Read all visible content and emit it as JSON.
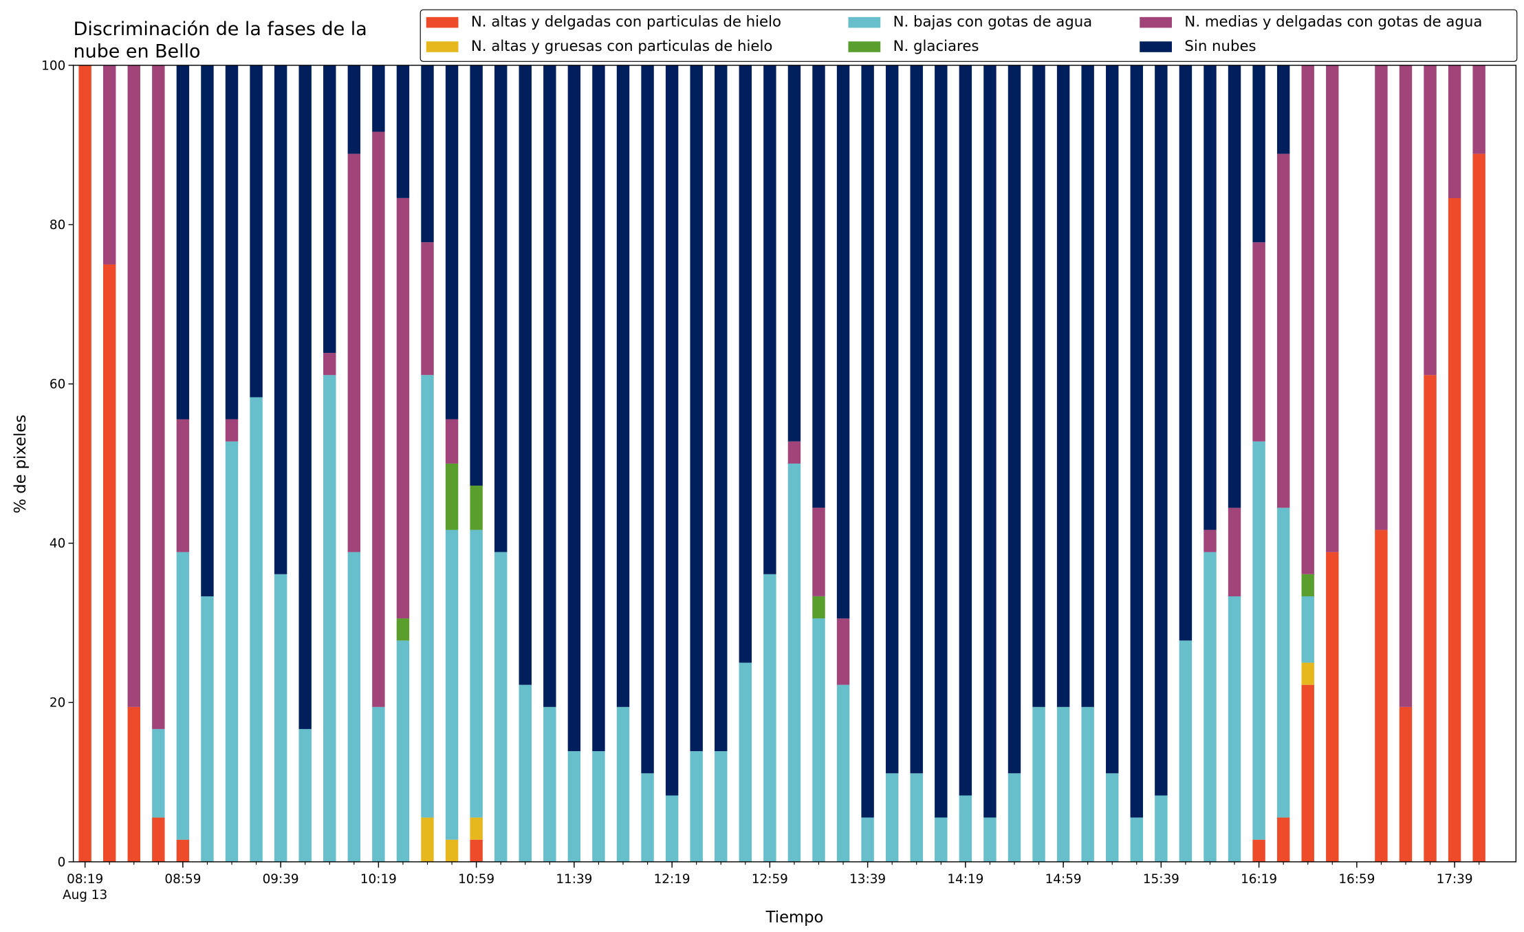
{
  "chart_data": {
    "type": "stacked_bar",
    "title": [
      "Discriminación de la fases de la",
      "nube en Bello"
    ],
    "xlabel": "Tiempo",
    "ylabel": "% de pixeles",
    "x": [
      "08:19",
      "08:29",
      "08:39",
      "08:49",
      "08:59",
      "09:09",
      "09:19",
      "09:29",
      "09:39",
      "09:49",
      "09:59",
      "10:09",
      "10:19",
      "10:29",
      "10:39",
      "10:49",
      "10:59",
      "11:09",
      "11:19",
      "11:29",
      "11:39",
      "11:49",
      "11:59",
      "12:09",
      "12:19",
      "12:29",
      "12:39",
      "12:49",
      "12:59",
      "13:09",
      "13:19",
      "13:29",
      "13:39",
      "13:49",
      "13:59",
      "14:09",
      "14:19",
      "14:29",
      "14:39",
      "14:49",
      "14:59",
      "15:09",
      "15:19",
      "15:29",
      "15:39",
      "15:49",
      "15:59",
      "16:09",
      "16:19",
      "16:29",
      "16:39",
      "16:49",
      "16:59",
      "17:09",
      "17:19",
      "17:29",
      "17:39",
      "17:49"
    ],
    "xticks": [
      "08:19",
      "08:59",
      "09:39",
      "10:19",
      "10:59",
      "11:39",
      "12:19",
      "12:59",
      "13:39",
      "14:19",
      "14:59",
      "15:39",
      "16:19",
      "16:59",
      "17:39"
    ],
    "x_date_label": "Aug 13",
    "ylim": [
      0,
      100
    ],
    "yticks": [
      0,
      20,
      40,
      60,
      80,
      100
    ],
    "legend": "top-right",
    "series": [
      {
        "name": "N. altas y delgadas con particulas de hielo",
        "color": "#ee4b2b",
        "values": [
          100,
          75,
          19.44,
          5.56,
          2.78,
          0,
          0,
          0,
          0,
          0,
          0,
          0,
          0,
          0,
          0,
          0,
          2.78,
          0,
          0,
          0,
          0,
          0,
          0,
          0,
          0,
          0,
          0,
          0,
          0,
          0,
          0,
          0,
          0,
          0,
          0,
          0,
          0,
          0,
          0,
          0,
          0,
          0,
          0,
          0,
          0,
          0,
          0,
          0,
          2.78,
          5.56,
          22.22,
          38.89,
          null,
          41.67,
          19.44,
          61.11,
          83.33,
          88.89
        ]
      },
      {
        "name": "N. altas y gruesas con particulas de hielo",
        "color": "#e6b81e",
        "values": [
          0,
          0,
          0,
          0,
          0,
          0,
          0,
          0,
          0,
          0,
          0,
          0,
          0,
          0,
          5.56,
          2.78,
          2.78,
          0,
          0,
          0,
          0,
          0,
          0,
          0,
          0,
          0,
          0,
          0,
          0,
          0,
          0,
          0,
          0,
          0,
          0,
          0,
          0,
          0,
          0,
          0,
          0,
          0,
          0,
          0,
          0,
          0,
          0,
          0,
          0,
          0,
          2.78,
          0,
          null,
          0,
          0,
          0,
          0,
          0
        ]
      },
      {
        "name": "N. bajas con gotas de agua",
        "color": "#66bfcb",
        "values": [
          0,
          0,
          0,
          11.11,
          36.11,
          33.33,
          52.78,
          58.33,
          36.11,
          16.67,
          61.11,
          38.89,
          19.44,
          27.78,
          55.56,
          38.89,
          36.11,
          38.89,
          22.22,
          19.44,
          13.89,
          13.89,
          19.44,
          11.11,
          8.33,
          13.89,
          13.89,
          25,
          36.11,
          50,
          30.56,
          22.22,
          5.56,
          11.11,
          11.11,
          5.56,
          8.33,
          5.56,
          11.11,
          19.44,
          19.44,
          19.44,
          11.11,
          5.56,
          8.33,
          27.78,
          38.89,
          33.33,
          50,
          38.89,
          8.33,
          0,
          null,
          0,
          0,
          0,
          0,
          0
        ]
      },
      {
        "name": "N. glaciares",
        "color": "#5a9e2e",
        "values": [
          0,
          0,
          0,
          0,
          0,
          0,
          0,
          0,
          0,
          0,
          0,
          0,
          0,
          2.78,
          0,
          8.33,
          5.56,
          0,
          0,
          0,
          0,
          0,
          0,
          0,
          0,
          0,
          0,
          0,
          0,
          0,
          2.78,
          0,
          0,
          0,
          0,
          0,
          0,
          0,
          0,
          0,
          0,
          0,
          0,
          0,
          0,
          0,
          0,
          0,
          0,
          0,
          2.78,
          0,
          null,
          0,
          0,
          0,
          0,
          0
        ]
      },
      {
        "name": "N. medias y delgadas con gotas de agua",
        "color": "#a0447a",
        "values": [
          0,
          25,
          80.56,
          83.33,
          16.67,
          0,
          2.78,
          0,
          0,
          0,
          2.78,
          50,
          72.22,
          52.78,
          16.67,
          5.56,
          0,
          0,
          0,
          0,
          0,
          0,
          0,
          0,
          0,
          0,
          0,
          0,
          0,
          2.78,
          11.11,
          8.33,
          0,
          0,
          0,
          0,
          0,
          0,
          0,
          0,
          0,
          0,
          0,
          0,
          0,
          0,
          2.78,
          11.11,
          25,
          44.44,
          63.89,
          61.11,
          null,
          58.33,
          80.56,
          38.89,
          16.67,
          11.11
        ]
      },
      {
        "name": "Sin nubes",
        "color": "#001f5c",
        "values": [
          0,
          0,
          0,
          0,
          44.44,
          66.67,
          44.44,
          41.67,
          63.89,
          83.33,
          36.11,
          11.11,
          8.33,
          16.67,
          22.22,
          44.44,
          52.78,
          61.11,
          77.78,
          80.56,
          86.11,
          86.11,
          80.56,
          88.89,
          91.67,
          86.11,
          86.11,
          75,
          63.89,
          47.22,
          55.56,
          69.44,
          94.44,
          88.89,
          88.89,
          94.44,
          91.67,
          94.44,
          88.89,
          80.56,
          80.56,
          80.56,
          88.89,
          94.44,
          91.67,
          72.22,
          58.33,
          55.56,
          22.22,
          11.11,
          0,
          0,
          null,
          0,
          0,
          0,
          0,
          0
        ]
      }
    ]
  }
}
